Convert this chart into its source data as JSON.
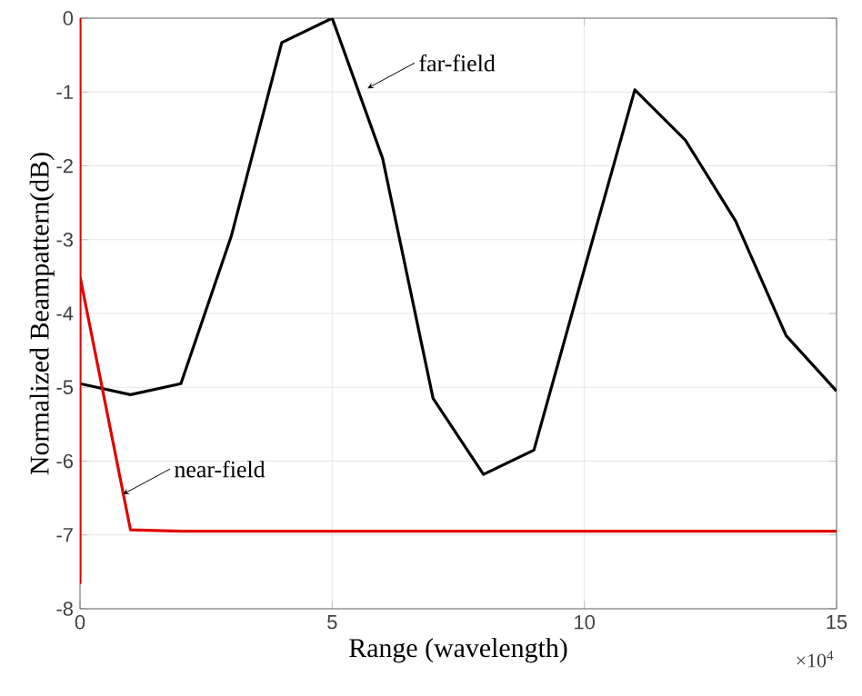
{
  "chart_data": {
    "type": "line",
    "xlabel": "Range (wavelength)",
    "ylabel": "Normalized Beampattern(dB)",
    "xlim": [
      0,
      15
    ],
    "ylim": [
      -8,
      0
    ],
    "xticks": [
      0,
      5,
      10,
      15
    ],
    "yticks": [
      -8,
      -7,
      -6,
      -5,
      -4,
      -3,
      -2,
      -1,
      0
    ],
    "grid": true,
    "line_style": "solid",
    "marker": "none",
    "series": [
      {
        "color": "#000000",
        "x": [
          0,
          1,
          2,
          3,
          4,
          5,
          6,
          7,
          8,
          9,
          10,
          11,
          12,
          13,
          14,
          15
        ],
        "values": [
          -4.95,
          -5.1,
          -4.95,
          -2.95,
          -0.33,
          0,
          -1.9,
          -5.15,
          -6.18,
          -5.85,
          -3.4,
          -0.97,
          -1.65,
          -2.75,
          -4.3,
          -5.05
        ]
      },
      {
        "color": "#e00000",
        "x": [
          0,
          0,
          0,
          1,
          2,
          15
        ],
        "values": [
          0,
          -7.65,
          -3.5,
          -6.93,
          -6.95,
          -6.95
        ]
      }
    ],
    "annotations": [
      {
        "text": "far-field",
        "x": 5.7,
        "y": -0.95
      },
      {
        "text": "near-field",
        "x": 0.85,
        "y": -6.45
      },
      "×10$^{4}$"
    ]
  }
}
